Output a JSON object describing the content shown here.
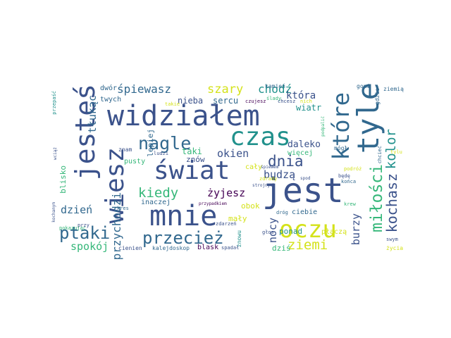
{
  "palette": {
    "dark_purple": "#440154",
    "indigo": "#3b528b",
    "slate": "#31688e",
    "teal": "#21918c",
    "green": "#35b779",
    "lime": "#90d743",
    "yellow": "#d4e21a",
    "background": "#ffffff"
  },
  "words": {
    "jest": "jest",
    "widzialem": "widziałem",
    "tyle": "tyle",
    "jestes": "jesteś",
    "wiesz": "wiesz",
    "mnie": "mnie",
    "czas": "czas",
    "swiat": "świat",
    "oczu": "oczu",
    "ktore": "które",
    "nagle": "nagle",
    "przeciez": "przecież",
    "ptaki": "ptaki",
    "milosci": "miłości",
    "kochasz": "kochasz",
    "kolor": "kolor",
    "dnia": "dnia",
    "kiedy": "kiedy",
    "ziemi": "ziemi",
    "szary": "szary",
    "spiewasz": "śpiewasz",
    "chodz": "chodź",
    "przychodzi": "przychodzi",
    "dzien": "dzień",
    "spokoj": "spokój",
    "zyjesz": "żyjesz",
    "budza": "budzą",
    "okien": "okien",
    "nocy": "nocy",
    "burzy": "burzy",
    "tlukac": "tłukąc",
    "ktora": "która",
    "sercu": "sercu",
    "nieba": "nieba",
    "taki": "taki",
    "dalako": "daleko",
    "wiatr": "wiatr",
    "lepiej": "lepiej",
    "twych": "twych",
    "dwor": "dwór",
    "blisko": "blisko",
    "maly": "mały",
    "obok": "obok",
    "ponad": "ponad",
    "dzis": "dziś",
    "znow": "znów",
    "cienien": "cienien",
    "blask": "blask",
    "kalejdoskop": "kalejdoskop",
    "wiecej": "więcej",
    "caly": "cały",
    "inaczej": "inaczej",
    "pusty": "pusty",
    "ciebie": "ciebie",
    "placza": "płaczą",
    "zycia": "życia",
    "zmowu": "znowu",
    "kamien": "kamień",
    "ziemia": "ziemią",
    "gdzie": "gdzie",
    "goni": "goni",
    "slady": "ślady",
    "czujesz": "czujesz",
    "chcesz": "chcesz",
    "nich": "nich",
    "mogl": "mógł",
    "spiewem": "śpiewem",
    "zdrady": "zdrady",
    "ludzi": "ludzi",
    "znam": "znam",
    "kres": "kres",
    "przy": "przy",
    "pokazujac": "pokazując",
    "droga": "dróg",
    "glos": "głos",
    "spadal": "spadał",
    "bede": "będę",
    "konca": "końca",
    "podroz": "podróż",
    "krew": "krew",
    "swym": "swym",
    "tylu": "tylu",
    "przepasc": "przepaść",
    "takie": "takie",
    "zdarzen": "zdarzeń",
    "spod": "spod",
    "chciec": "chcieć",
    "niw": "niw",
    "szczyt": "szczyt",
    "zasul": "zasul",
    "kochanym": "kochanym",
    "wciaz": "wciąż",
    "stojnych": "strojnych",
    "przepodobny": "przypadkiem",
    "podpalic": "podpalić",
    "kazdy": "każdy"
  }
}
